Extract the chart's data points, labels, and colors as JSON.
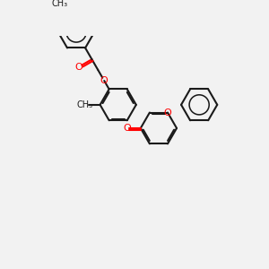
{
  "bg_color": "#f2f2f2",
  "bond_color": "#1a1a1a",
  "oxygen_color": "#ff0000",
  "line_width": 1.5,
  "dbo": 0.08,
  "figsize": [
    3.0,
    3.0
  ],
  "dpi": 100,
  "xlim": [
    0,
    10
  ],
  "ylim": [
    0,
    10
  ]
}
